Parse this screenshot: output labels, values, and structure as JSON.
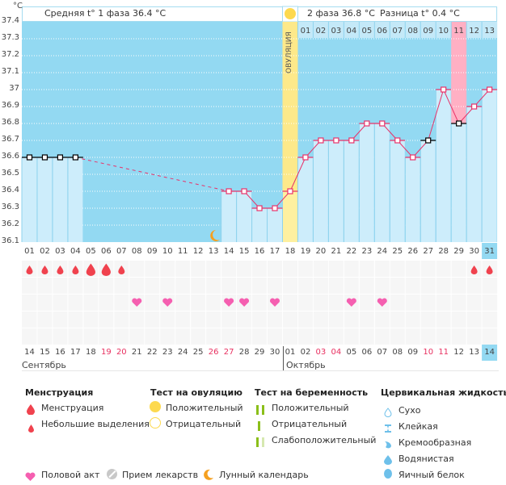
{
  "header": {
    "unit": "°C",
    "phase1": "Средняя t° 1 фаза 36.4 °C",
    "phase2": "2 фаза 36.8 °C",
    "difference": "Разница t° 0.4 °C",
    "ovulation_label": "ОВУЛЯЦИЯ"
  },
  "colors": {
    "background_blue": "#93d9f2",
    "bar_fill": "#cdedfb",
    "ovulation": "#fef0a0",
    "ovulation_sun": "#fdd94f",
    "period_highlight": "#ffb0c4",
    "line": "#e8336a",
    "today": "#93d9f2"
  },
  "chart_data": {
    "type": "line",
    "title": "",
    "ylabel": "°C",
    "ylim": [
      36.1,
      37.4
    ],
    "yticks": [
      "37.4",
      "37.3",
      "37.2",
      "37.1",
      "37",
      "36.9",
      "36.8",
      "36.7",
      "36.6",
      "36.5",
      "36.4",
      "36.3",
      "36.2",
      "36.1"
    ],
    "cycle_days": [
      "01",
      "02",
      "03",
      "04",
      "05",
      "06",
      "07",
      "08",
      "09",
      "10",
      "11",
      "12",
      "13",
      "14",
      "15",
      "16",
      "17",
      "18",
      "19",
      "20",
      "21",
      "22",
      "23",
      "24",
      "25",
      "26",
      "27",
      "28",
      "29",
      "30",
      "31"
    ],
    "phase2_days": [
      "01",
      "02",
      "03",
      "04",
      "05",
      "06",
      "07",
      "08",
      "09",
      "10",
      "11",
      "12",
      "13"
    ],
    "ovulation_day": 18,
    "highlight_phase2_day": 11,
    "today_cycle_day": 31,
    "temperatures": [
      36.6,
      36.6,
      36.6,
      36.6,
      null,
      null,
      null,
      null,
      null,
      null,
      null,
      null,
      null,
      36.4,
      36.4,
      36.3,
      36.3,
      36.4,
      36.6,
      36.7,
      36.7,
      36.7,
      36.8,
      36.8,
      36.7,
      36.6,
      36.7,
      37.0,
      36.8,
      36.9,
      37.0
    ],
    "excluded_points": [
      1,
      2,
      3,
      4,
      27,
      29
    ],
    "grid": true
  },
  "markers": {
    "menstruation_large": [
      5,
      6
    ],
    "menstruation_small": [
      1,
      2,
      3,
      4,
      7,
      30,
      31
    ],
    "intercourse": [
      8,
      10,
      14,
      15,
      17,
      22,
      24
    ],
    "moon_day": 13
  },
  "calendar": {
    "dates": [
      "14",
      "15",
      "16",
      "17",
      "18",
      "19",
      "20",
      "21",
      "22",
      "23",
      "24",
      "25",
      "26",
      "27",
      "28",
      "29",
      "30",
      "01",
      "02",
      "03",
      "04",
      "05",
      "06",
      "07",
      "08",
      "09",
      "10",
      "11",
      "12",
      "13",
      "14"
    ],
    "weekend_index": [
      5,
      6,
      12,
      13,
      19,
      20,
      26,
      27
    ],
    "month1": "Сентябрь",
    "month2": "Октябрь"
  },
  "legend": {
    "menstruation": {
      "title": "Менструация",
      "items": [
        "Менструация",
        "Небольшие выделения"
      ]
    },
    "ovulation_test": {
      "title": "Тест на овуляцию",
      "items": [
        "Положительный",
        "Отрицательный"
      ]
    },
    "pregnancy_test": {
      "title": "Тест на беременность",
      "items": [
        "Положительный",
        "Отрицательный",
        "Слабоположительный"
      ]
    },
    "cervical_fluid": {
      "title": "Цервикальная жидкость",
      "items": [
        "Сухо",
        "Клейкая",
        "Кремообразная",
        "Водянистая",
        "Яичный белок"
      ]
    },
    "other": [
      "Половой акт",
      "Прием лекарств",
      "Лунный календарь"
    ]
  }
}
